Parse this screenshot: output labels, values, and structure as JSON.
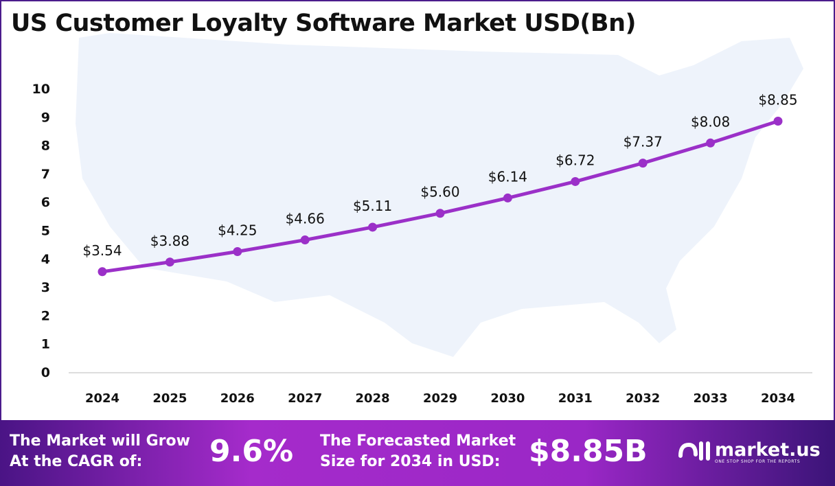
{
  "chart_data": {
    "type": "line",
    "title": "US Customer Loyalty Software Market USD(Bn)",
    "categories": [
      "2024",
      "2025",
      "2026",
      "2027",
      "2028",
      "2029",
      "2030",
      "2031",
      "2032",
      "2033",
      "2034"
    ],
    "values": [
      3.54,
      3.88,
      4.25,
      4.66,
      5.11,
      5.6,
      6.14,
      6.72,
      7.37,
      8.08,
      8.85
    ],
    "data_labels": [
      "$3.54",
      "$3.88",
      "$4.25",
      "$4.66",
      "$5.11",
      "$5.60",
      "$6.14",
      "$6.72",
      "$7.37",
      "$8.08",
      "$8.85"
    ],
    "yticks": [
      "0",
      "1",
      "2",
      "3",
      "4",
      "5",
      "6",
      "7",
      "8",
      "9",
      "10"
    ],
    "ylim": [
      0,
      10
    ],
    "xlabel": "",
    "ylabel": "",
    "grid": false,
    "line_color": "#9b30c8"
  },
  "footer": {
    "cagr_label_1": "The Market will Grow",
    "cagr_label_2": "At the CAGR of:",
    "cagr_value": "9.6%",
    "forecast_label_1": "The Forecasted Market",
    "forecast_label_2": "Size for 2034 in USD:",
    "forecast_value": "$8.85B",
    "logo_text": "market.us",
    "logo_tagline": "ONE STOP SHOP FOR THE REPORTS"
  }
}
